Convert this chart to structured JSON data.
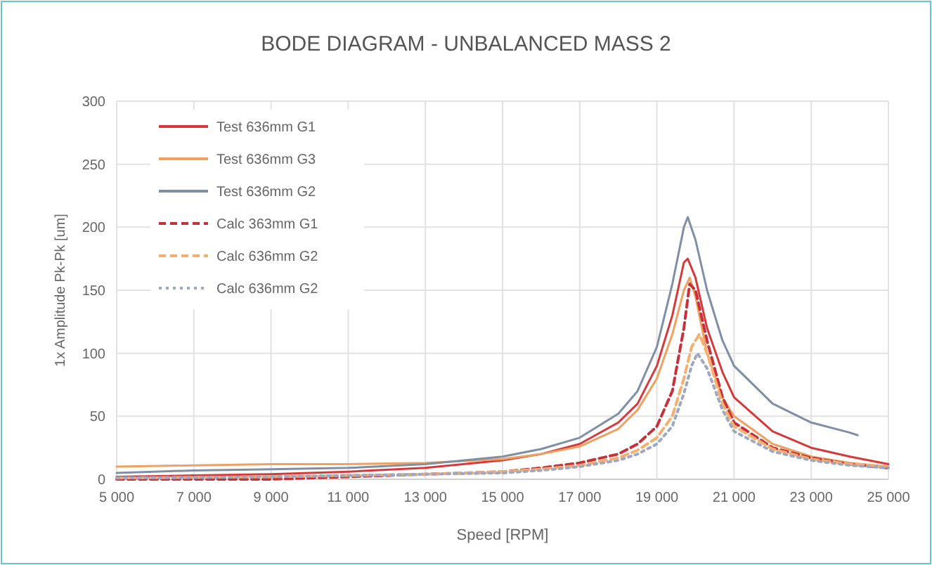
{
  "chart_data": {
    "type": "line",
    "title": "BODE DIAGRAM - UNBALANCED MASS 2",
    "xlabel": "Speed [RPM]",
    "ylabel": "1x Amplitude Pk-Pk [um]",
    "xlim": [
      5000,
      25000
    ],
    "xticks": [
      {
        "value": 5000,
        "label": "5 000"
      },
      {
        "value": 7000,
        "label": "7 000"
      },
      {
        "value": 9000,
        "label": "9 000"
      },
      {
        "value": 11000,
        "label": "11 000"
      },
      {
        "value": 13000,
        "label": "13 000"
      },
      {
        "value": 15000,
        "label": "15 000"
      },
      {
        "value": 17000,
        "label": "17 000"
      },
      {
        "value": 19000,
        "label": "19 000"
      },
      {
        "value": 21000,
        "label": "21 000"
      },
      {
        "value": 23000,
        "label": "23 000"
      },
      {
        "value": 25000,
        "label": "25 000"
      }
    ],
    "ylim": [
      0,
      300
    ],
    "yticks": [
      0,
      50,
      100,
      150,
      200,
      250,
      300
    ],
    "grid": true,
    "legend": "top left",
    "series": [
      {
        "name": "Test 636mm G1",
        "color": "#d9383a",
        "line_style": "solid",
        "x": [
          5000,
          7000,
          9000,
          11000,
          13000,
          15000,
          16000,
          17000,
          18000,
          18500,
          19000,
          19400,
          19700,
          19800,
          20000,
          20300,
          20700,
          21000,
          22000,
          23000,
          24000,
          25000
        ],
        "values": [
          2,
          3,
          4,
          6,
          9,
          15,
          20,
          28,
          45,
          60,
          90,
          130,
          172,
          175,
          160,
          120,
          85,
          65,
          38,
          25,
          18,
          12
        ]
      },
      {
        "name": "Test 636mm G3",
        "color": "#f0a060",
        "line_style": "solid",
        "x": [
          5000,
          7000,
          9000,
          11000,
          13000,
          15000,
          16000,
          17000,
          18000,
          18500,
          19000,
          19400,
          19700,
          19850,
          20000,
          20300,
          20700,
          21000,
          22000,
          23000,
          24000,
          25000
        ],
        "values": [
          10,
          11,
          12,
          12,
          13,
          16,
          20,
          26,
          40,
          55,
          80,
          115,
          150,
          160,
          145,
          100,
          65,
          50,
          28,
          18,
          13,
          10
        ]
      },
      {
        "name": "Test 636mm G2",
        "color": "#7f8fa6",
        "line_style": "solid",
        "x": [
          5000,
          7000,
          9000,
          11000,
          13000,
          15000,
          16000,
          17000,
          18000,
          18500,
          19000,
          19400,
          19700,
          19800,
          20000,
          20300,
          20700,
          21000,
          22000,
          23000,
          24000,
          24200
        ],
        "values": [
          5,
          7,
          8,
          9,
          12,
          18,
          24,
          33,
          52,
          70,
          105,
          155,
          200,
          208,
          190,
          150,
          110,
          90,
          60,
          45,
          37,
          35
        ]
      },
      {
        "name": "Calc 363mm G1",
        "color": "#c8303a",
        "line_style": "dashed",
        "x": [
          5000,
          9000,
          11000,
          13000,
          15000,
          16000,
          17000,
          18000,
          18500,
          19000,
          19400,
          19700,
          19850,
          20000,
          20300,
          20700,
          21000,
          22000,
          23000,
          24000,
          25000
        ],
        "values": [
          0,
          0,
          2,
          4,
          6,
          9,
          13,
          20,
          28,
          42,
          70,
          120,
          155,
          150,
          110,
          65,
          45,
          25,
          17,
          12,
          9
        ]
      },
      {
        "name": "Calc 636mm G2",
        "color": "#f5b070",
        "line_style": "dashed",
        "x": [
          5000,
          9000,
          11000,
          13000,
          15000,
          16000,
          17000,
          18000,
          18500,
          19000,
          19400,
          19700,
          19900,
          20100,
          20300,
          20700,
          21000,
          22000,
          23000,
          24000,
          25000
        ],
        "values": [
          1,
          2,
          3,
          4,
          6,
          8,
          11,
          17,
          23,
          33,
          50,
          80,
          105,
          115,
          100,
          60,
          42,
          24,
          16,
          12,
          10
        ]
      },
      {
        "name": "Calc 636mm G2",
        "color": "#a0a8c0",
        "line_style": "dotted",
        "x": [
          5000,
          9000,
          11000,
          13000,
          15000,
          16000,
          17000,
          18000,
          18500,
          19000,
          19400,
          19700,
          19900,
          20050,
          20300,
          20700,
          21000,
          22000,
          23000,
          24000,
          25000
        ],
        "values": [
          1,
          2,
          3,
          4,
          5,
          7,
          10,
          15,
          20,
          28,
          42,
          68,
          90,
          100,
          88,
          55,
          38,
          22,
          15,
          11,
          9
        ]
      }
    ]
  }
}
